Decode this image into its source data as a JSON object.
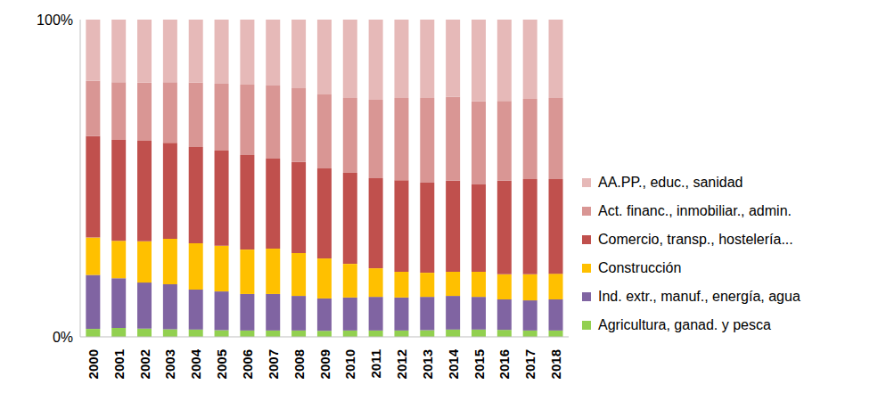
{
  "chart_data": {
    "type": "bar",
    "stacked": true,
    "grid": false,
    "legend": "right",
    "categories": [
      "2000",
      "2001",
      "2002",
      "2003",
      "2004",
      "2005",
      "2006",
      "2007",
      "2008",
      "2009",
      "2010",
      "2011",
      "2012",
      "2013",
      "2014",
      "2015",
      "2016",
      "2017",
      "2018"
    ],
    "ylim": [
      0,
      100
    ],
    "yticks": [
      {
        "value": 0,
        "label": "0%"
      },
      {
        "value": 100,
        "label": "100%"
      }
    ],
    "series": [
      {
        "name": "Agricultura, ganad. y pesca",
        "color": "#92d050",
        "values": [
          2.5,
          2.8,
          2.6,
          2.4,
          2.3,
          2.1,
          2.0,
          2.0,
          2.0,
          1.9,
          2.0,
          2.0,
          2.0,
          2.1,
          2.3,
          2.3,
          2.2,
          2.0,
          2.0
        ]
      },
      {
        "name": "Ind. extr., manuf., energía, agua",
        "color": "#8064a2",
        "values": [
          17.0,
          15.7,
          14.5,
          14.2,
          12.6,
          12.2,
          11.5,
          11.5,
          10.9,
          10.2,
          10.4,
          10.6,
          10.4,
          10.5,
          10.6,
          10.3,
          9.6,
          9.5,
          9.8
        ]
      },
      {
        "name": "Construcción",
        "color": "#ffc000",
        "values": [
          11.8,
          11.8,
          13.0,
          14.3,
          14.6,
          14.4,
          14.0,
          14.3,
          13.5,
          12.6,
          10.6,
          9.0,
          8.1,
          7.6,
          7.6,
          7.9,
          7.9,
          8.2,
          8.1
        ]
      },
      {
        "name": "Comercio, transp., hostelería...",
        "color": "#c0504d",
        "values": [
          32.0,
          31.8,
          31.7,
          30.3,
          30.3,
          30.0,
          29.8,
          28.4,
          28.7,
          28.4,
          28.7,
          28.4,
          28.9,
          28.4,
          28.7,
          27.5,
          29.5,
          30.0,
          29.8
        ]
      },
      {
        "name": "Act. financ., inmobiliar., admin.",
        "color": "#d99694",
        "values": [
          17.4,
          18.2,
          18.3,
          19.1,
          20.3,
          21.1,
          22.2,
          23.0,
          23.3,
          23.3,
          23.6,
          24.7,
          25.9,
          26.7,
          26.4,
          26.2,
          25.2,
          25.3,
          25.6
        ]
      },
      {
        "name": "AA.PP., educ., sanidad",
        "color": "#e6b9b8",
        "values": [
          19.3,
          19.7,
          19.9,
          19.7,
          19.9,
          20.2,
          20.5,
          20.8,
          21.6,
          23.6,
          24.7,
          25.3,
          24.7,
          24.7,
          24.4,
          25.8,
          25.6,
          25.0,
          24.7
        ]
      }
    ]
  }
}
